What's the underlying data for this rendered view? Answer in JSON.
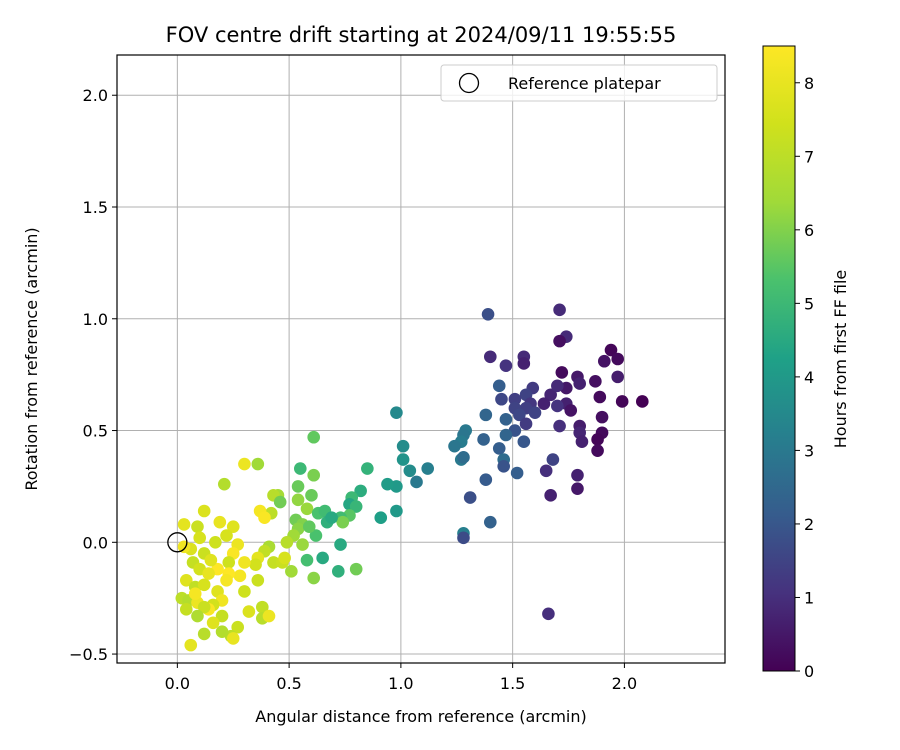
{
  "chart_data": {
    "type": "scatter",
    "title": "FOV centre drift starting at 2024/09/11 19:55:55",
    "xlabel": "Angular distance from reference (arcmin)",
    "ylabel": "Rotation from reference (arcmin)",
    "xlim": [
      -0.27,
      2.45
    ],
    "ylim": [
      -0.54,
      2.18
    ],
    "xticks": [
      0.0,
      0.5,
      1.0,
      1.5,
      2.0
    ],
    "yticks": [
      -0.5,
      0.0,
      0.5,
      1.0,
      1.5,
      2.0
    ],
    "xtick_labels": [
      "0.0",
      "0.5",
      "1.0",
      "1.5",
      "2.0"
    ],
    "ytick_labels": [
      "−0.5",
      "0.0",
      "0.5",
      "1.0",
      "1.5",
      "2.0"
    ],
    "grid": true,
    "legend": {
      "placement": "top-right",
      "entries": [
        {
          "label": "Reference platepar",
          "marker": "open-circle"
        }
      ]
    },
    "reference_point": {
      "x": 0.0,
      "y": 0.0
    },
    "colorbar": {
      "label": "Hours from first FF file",
      "range": [
        0,
        8.5
      ],
      "ticks": [
        0,
        1,
        2,
        3,
        4,
        5,
        6,
        7,
        8
      ],
      "tick_labels": [
        "0",
        "1",
        "2",
        "3",
        "4",
        "5",
        "6",
        "7",
        "8"
      ],
      "colormap": "viridis"
    },
    "points": [
      {
        "x": 2.08,
        "y": 0.63,
        "c": 0.0
      },
      {
        "x": 1.99,
        "y": 0.63,
        "c": 0.1
      },
      {
        "x": 1.94,
        "y": 0.86,
        "c": 0.1
      },
      {
        "x": 1.97,
        "y": 0.82,
        "c": 0.2
      },
      {
        "x": 1.97,
        "y": 0.74,
        "c": 0.6
      },
      {
        "x": 1.91,
        "y": 0.81,
        "c": 0.4
      },
      {
        "x": 1.87,
        "y": 0.72,
        "c": 0.3
      },
      {
        "x": 1.89,
        "y": 0.65,
        "c": 0.2
      },
      {
        "x": 1.9,
        "y": 0.56,
        "c": 0.3
      },
      {
        "x": 1.9,
        "y": 0.49,
        "c": 0.2
      },
      {
        "x": 1.88,
        "y": 0.46,
        "c": 0.1
      },
      {
        "x": 1.88,
        "y": 0.41,
        "c": 0.2
      },
      {
        "x": 1.79,
        "y": 0.74,
        "c": 0.5
      },
      {
        "x": 1.8,
        "y": 0.71,
        "c": 0.7
      },
      {
        "x": 1.74,
        "y": 0.92,
        "c": 0.9
      },
      {
        "x": 1.71,
        "y": 1.04,
        "c": 0.9
      },
      {
        "x": 1.71,
        "y": 0.9,
        "c": 0.3
      },
      {
        "x": 1.72,
        "y": 0.76,
        "c": 0.2
      },
      {
        "x": 1.74,
        "y": 0.69,
        "c": 0.5
      },
      {
        "x": 1.74,
        "y": 0.62,
        "c": 0.7
      },
      {
        "x": 1.76,
        "y": 0.59,
        "c": 0.4
      },
      {
        "x": 1.8,
        "y": 0.52,
        "c": 0.6
      },
      {
        "x": 1.8,
        "y": 0.49,
        "c": 0.8
      },
      {
        "x": 1.81,
        "y": 0.45,
        "c": 0.7
      },
      {
        "x": 1.79,
        "y": 0.3,
        "c": 0.7
      },
      {
        "x": 1.79,
        "y": 0.24,
        "c": 0.5
      },
      {
        "x": 1.71,
        "y": 0.52,
        "c": 1.0
      },
      {
        "x": 1.7,
        "y": 0.61,
        "c": 1.1
      },
      {
        "x": 1.67,
        "y": 0.66,
        "c": 0.8
      },
      {
        "x": 1.64,
        "y": 0.62,
        "c": 0.7
      },
      {
        "x": 1.7,
        "y": 0.7,
        "c": 0.9
      },
      {
        "x": 1.59,
        "y": 0.69,
        "c": 1.3
      },
      {
        "x": 1.56,
        "y": 0.66,
        "c": 1.5
      },
      {
        "x": 1.55,
        "y": 0.83,
        "c": 0.9
      },
      {
        "x": 1.55,
        "y": 0.8,
        "c": 0.7
      },
      {
        "x": 1.58,
        "y": 0.62,
        "c": 1.2
      },
      {
        "x": 1.56,
        "y": 0.6,
        "c": 1.4
      },
      {
        "x": 1.6,
        "y": 0.58,
        "c": 1.5
      },
      {
        "x": 1.51,
        "y": 0.64,
        "c": 1.4
      },
      {
        "x": 1.51,
        "y": 0.6,
        "c": 1.5
      },
      {
        "x": 1.53,
        "y": 0.57,
        "c": 1.6
      },
      {
        "x": 1.56,
        "y": 0.53,
        "c": 1.3
      },
      {
        "x": 1.51,
        "y": 0.5,
        "c": 1.9
      },
      {
        "x": 1.55,
        "y": 0.45,
        "c": 2.0
      },
      {
        "x": 1.47,
        "y": 0.79,
        "c": 1.1
      },
      {
        "x": 1.4,
        "y": 0.83,
        "c": 0.9
      },
      {
        "x": 1.39,
        "y": 1.02,
        "c": 1.8
      },
      {
        "x": 1.44,
        "y": 0.7,
        "c": 2.2
      },
      {
        "x": 1.45,
        "y": 0.64,
        "c": 1.6
      },
      {
        "x": 1.47,
        "y": 0.55,
        "c": 2.3
      },
      {
        "x": 1.47,
        "y": 0.48,
        "c": 2.4
      },
      {
        "x": 1.44,
        "y": 0.42,
        "c": 2.2
      },
      {
        "x": 1.46,
        "y": 0.37,
        "c": 2.6
      },
      {
        "x": 1.46,
        "y": 0.34,
        "c": 1.9
      },
      {
        "x": 1.52,
        "y": 0.31,
        "c": 2.2
      },
      {
        "x": 1.38,
        "y": 0.57,
        "c": 2.4
      },
      {
        "x": 1.37,
        "y": 0.46,
        "c": 2.3
      },
      {
        "x": 1.38,
        "y": 0.28,
        "c": 2.1
      },
      {
        "x": 1.31,
        "y": 0.2,
        "c": 1.8
      },
      {
        "x": 1.4,
        "y": 0.09,
        "c": 2.3
      },
      {
        "x": 1.29,
        "y": 0.5,
        "c": 3.0
      },
      {
        "x": 1.28,
        "y": 0.48,
        "c": 2.9
      },
      {
        "x": 1.27,
        "y": 0.45,
        "c": 3.1
      },
      {
        "x": 1.24,
        "y": 0.43,
        "c": 2.9
      },
      {
        "x": 1.27,
        "y": 0.37,
        "c": 3.0
      },
      {
        "x": 1.28,
        "y": 0.38,
        "c": 2.6
      },
      {
        "x": 1.28,
        "y": 0.04,
        "c": 3.2
      },
      {
        "x": 1.28,
        "y": 0.02,
        "c": 1.7
      },
      {
        "x": 1.68,
        "y": 0.37,
        "c": 1.5
      },
      {
        "x": 1.65,
        "y": 0.32,
        "c": 1.0
      },
      {
        "x": 1.67,
        "y": 0.21,
        "c": 0.7
      },
      {
        "x": 1.66,
        "y": -0.32,
        "c": 1.0
      },
      {
        "x": 0.98,
        "y": 0.58,
        "c": 3.5
      },
      {
        "x": 1.01,
        "y": 0.43,
        "c": 3.6
      },
      {
        "x": 1.01,
        "y": 0.37,
        "c": 3.8
      },
      {
        "x": 1.04,
        "y": 0.32,
        "c": 3.6
      },
      {
        "x": 1.12,
        "y": 0.33,
        "c": 3.2
      },
      {
        "x": 1.07,
        "y": 0.27,
        "c": 3.0
      },
      {
        "x": 0.98,
        "y": 0.25,
        "c": 4.0
      },
      {
        "x": 0.98,
        "y": 0.14,
        "c": 4.0
      },
      {
        "x": 0.94,
        "y": 0.26,
        "c": 4.1
      },
      {
        "x": 0.91,
        "y": 0.11,
        "c": 4.2
      },
      {
        "x": 0.85,
        "y": 0.33,
        "c": 4.8
      },
      {
        "x": 0.82,
        "y": 0.23,
        "c": 4.6
      },
      {
        "x": 0.78,
        "y": 0.2,
        "c": 5.0
      },
      {
        "x": 0.77,
        "y": 0.17,
        "c": 4.4
      },
      {
        "x": 0.8,
        "y": 0.16,
        "c": 4.9
      },
      {
        "x": 0.77,
        "y": 0.12,
        "c": 5.5
      },
      {
        "x": 0.73,
        "y": 0.11,
        "c": 5.1
      },
      {
        "x": 0.74,
        "y": 0.09,
        "c": 5.9
      },
      {
        "x": 0.73,
        "y": -0.01,
        "c": 4.5
      },
      {
        "x": 0.72,
        "y": -0.13,
        "c": 4.7
      },
      {
        "x": 0.8,
        "y": -0.12,
        "c": 5.8
      },
      {
        "x": 0.65,
        "y": -0.07,
        "c": 4.5
      },
      {
        "x": 0.61,
        "y": 0.47,
        "c": 5.6
      },
      {
        "x": 0.61,
        "y": 0.3,
        "c": 5.9
      },
      {
        "x": 0.55,
        "y": 0.33,
        "c": 5.0
      },
      {
        "x": 0.54,
        "y": 0.25,
        "c": 5.7
      },
      {
        "x": 0.6,
        "y": 0.21,
        "c": 5.7
      },
      {
        "x": 0.54,
        "y": 0.19,
        "c": 6.2
      },
      {
        "x": 0.58,
        "y": 0.15,
        "c": 6.3
      },
      {
        "x": 0.63,
        "y": 0.13,
        "c": 5.3
      },
      {
        "x": 0.66,
        "y": 0.14,
        "c": 5.1
      },
      {
        "x": 0.67,
        "y": 0.09,
        "c": 4.7
      },
      {
        "x": 0.69,
        "y": 0.11,
        "c": 4.5
      },
      {
        "x": 0.53,
        "y": 0.1,
        "c": 5.8
      },
      {
        "x": 0.56,
        "y": 0.08,
        "c": 6.0
      },
      {
        "x": 0.54,
        "y": 0.06,
        "c": 6.1
      },
      {
        "x": 0.52,
        "y": 0.03,
        "c": 6.4
      },
      {
        "x": 0.62,
        "y": 0.03,
        "c": 5.3
      },
      {
        "x": 0.59,
        "y": 0.07,
        "c": 5.6
      },
      {
        "x": 0.56,
        "y": -0.01,
        "c": 6.3
      },
      {
        "x": 0.49,
        "y": 0.0,
        "c": 6.9
      },
      {
        "x": 0.51,
        "y": -0.13,
        "c": 6.4
      },
      {
        "x": 0.58,
        "y": -0.08,
        "c": 5.2
      },
      {
        "x": 0.61,
        "y": -0.16,
        "c": 6.1
      },
      {
        "x": 0.45,
        "y": 0.21,
        "c": 6.5
      },
      {
        "x": 0.43,
        "y": 0.21,
        "c": 6.9
      },
      {
        "x": 0.46,
        "y": 0.18,
        "c": 5.8
      },
      {
        "x": 0.42,
        "y": 0.13,
        "c": 7.0
      },
      {
        "x": 0.36,
        "y": 0.35,
        "c": 6.4
      },
      {
        "x": 0.3,
        "y": 0.35,
        "c": 8.1
      },
      {
        "x": 0.43,
        "y": -0.09,
        "c": 7.2
      },
      {
        "x": 0.47,
        "y": -0.09,
        "c": 7.3
      },
      {
        "x": 0.48,
        "y": -0.07,
        "c": 7.6
      },
      {
        "x": 0.41,
        "y": -0.02,
        "c": 6.6
      },
      {
        "x": 0.39,
        "y": -0.04,
        "c": 7.1
      },
      {
        "x": 0.37,
        "y": 0.14,
        "c": 8.3
      },
      {
        "x": 0.39,
        "y": 0.11,
        "c": 8.4
      },
      {
        "x": 0.36,
        "y": -0.07,
        "c": 7.9
      },
      {
        "x": 0.35,
        "y": -0.1,
        "c": 7.5
      },
      {
        "x": 0.36,
        "y": -0.17,
        "c": 7.3
      },
      {
        "x": 0.38,
        "y": -0.29,
        "c": 7.1
      },
      {
        "x": 0.38,
        "y": -0.34,
        "c": 6.9
      },
      {
        "x": 0.41,
        "y": -0.33,
        "c": 8.1
      },
      {
        "x": 0.3,
        "y": -0.09,
        "c": 8.2
      },
      {
        "x": 0.28,
        "y": -0.15,
        "c": 8.3
      },
      {
        "x": 0.3,
        "y": -0.22,
        "c": 7.4
      },
      {
        "x": 0.32,
        "y": -0.31,
        "c": 7.7
      },
      {
        "x": 0.27,
        "y": -0.38,
        "c": 7.3
      },
      {
        "x": 0.24,
        "y": -0.42,
        "c": 7.0
      },
      {
        "x": 0.25,
        "y": -0.43,
        "c": 8.0
      },
      {
        "x": 0.2,
        "y": -0.4,
        "c": 6.8
      },
      {
        "x": 0.21,
        "y": 0.26,
        "c": 6.8
      },
      {
        "x": 0.12,
        "y": 0.14,
        "c": 7.7
      },
      {
        "x": 0.19,
        "y": 0.09,
        "c": 8.0
      },
      {
        "x": 0.25,
        "y": 0.07,
        "c": 7.8
      },
      {
        "x": 0.22,
        "y": 0.03,
        "c": 7.6
      },
      {
        "x": 0.17,
        "y": 0.0,
        "c": 7.4
      },
      {
        "x": 0.27,
        "y": -0.01,
        "c": 8.1
      },
      {
        "x": 0.25,
        "y": -0.05,
        "c": 8.4
      },
      {
        "x": 0.23,
        "y": -0.09,
        "c": 7.4
      },
      {
        "x": 0.18,
        "y": -0.12,
        "c": 8.5
      },
      {
        "x": 0.23,
        "y": -0.14,
        "c": 8.5
      },
      {
        "x": 0.22,
        "y": -0.17,
        "c": 8.3
      },
      {
        "x": 0.18,
        "y": -0.22,
        "c": 7.8
      },
      {
        "x": 0.2,
        "y": -0.26,
        "c": 8.2
      },
      {
        "x": 0.16,
        "y": -0.28,
        "c": 7.5
      },
      {
        "x": 0.14,
        "y": -0.3,
        "c": 8.4
      },
      {
        "x": 0.2,
        "y": -0.33,
        "c": 7.2
      },
      {
        "x": 0.16,
        "y": -0.36,
        "c": 7.8
      },
      {
        "x": 0.12,
        "y": -0.41,
        "c": 6.9
      },
      {
        "x": 0.06,
        "y": -0.46,
        "c": 7.9
      },
      {
        "x": 0.03,
        "y": 0.08,
        "c": 7.9
      },
      {
        "x": 0.09,
        "y": 0.07,
        "c": 7.3
      },
      {
        "x": 0.1,
        "y": 0.02,
        "c": 7.6
      },
      {
        "x": 0.06,
        "y": -0.03,
        "c": 7.7
      },
      {
        "x": 0.12,
        "y": -0.05,
        "c": 7.3
      },
      {
        "x": 0.07,
        "y": -0.09,
        "c": 7.2
      },
      {
        "x": 0.1,
        "y": -0.12,
        "c": 7.5
      },
      {
        "x": 0.14,
        "y": -0.14,
        "c": 8.0
      },
      {
        "x": 0.04,
        "y": -0.17,
        "c": 7.8
      },
      {
        "x": 0.08,
        "y": -0.2,
        "c": 7.1
      },
      {
        "x": 0.12,
        "y": -0.19,
        "c": 7.6
      },
      {
        "x": 0.02,
        "y": -0.25,
        "c": 7.0
      },
      {
        "x": 0.05,
        "y": -0.26,
        "c": 6.8
      },
      {
        "x": 0.09,
        "y": -0.27,
        "c": 8.1
      },
      {
        "x": 0.12,
        "y": -0.29,
        "c": 7.3
      },
      {
        "x": 0.04,
        "y": -0.3,
        "c": 7.2
      },
      {
        "x": 0.09,
        "y": -0.33,
        "c": 6.7
      },
      {
        "x": 0.03,
        "y": -0.02,
        "c": 8.2
      },
      {
        "x": 0.15,
        "y": -0.08,
        "c": 7.8
      },
      {
        "x": 0.08,
        "y": -0.23,
        "c": 8.3
      }
    ]
  }
}
